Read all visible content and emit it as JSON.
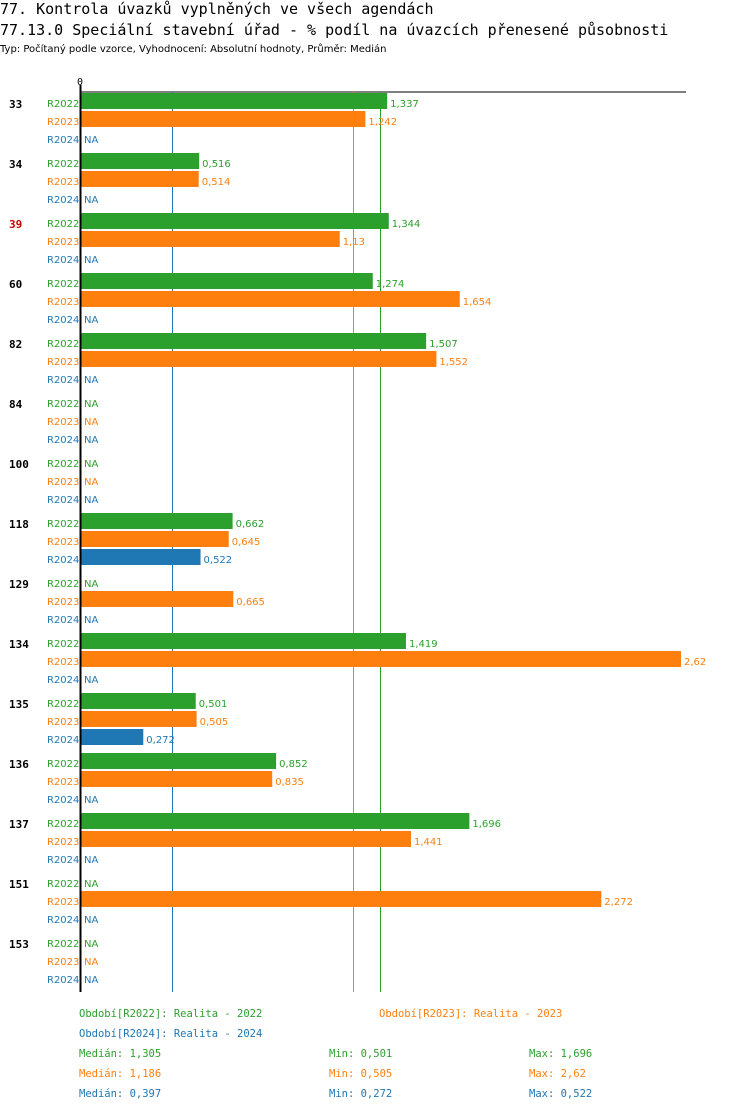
{
  "header": {
    "title1": "77. Kontrola úvazků vyplněných ve všech agendách",
    "title2": "77.13.0 Speciální stavební úřad - % podíl na úvazcích přenesené působnosti",
    "subtitle": "Typ: Počítaný podle vzorce, Vyhodnocení: Absolutní hodnoty, Průměr: Medián"
  },
  "colors": {
    "R2022": "#2ca02c",
    "R2023": "#ff7f0e",
    "R2024": "#1f77b4",
    "highlight": "#cc0000"
  },
  "chart_data": {
    "type": "bar",
    "orientation": "horizontal",
    "axis_zero_label": "0",
    "xlim": [
      0,
      2.62
    ],
    "series_names": [
      "R2022",
      "R2023",
      "R2024"
    ],
    "na_label": "NA",
    "groups": [
      {
        "label": "33",
        "highlight": false,
        "values": [
          1.337,
          1.242,
          null
        ],
        "labels": [
          "1,337",
          "1,242",
          "NA"
        ]
      },
      {
        "label": "34",
        "highlight": false,
        "values": [
          0.516,
          0.514,
          null
        ],
        "labels": [
          "0,516",
          "0,514",
          "NA"
        ]
      },
      {
        "label": "39",
        "highlight": true,
        "values": [
          1.344,
          1.13,
          null
        ],
        "labels": [
          "1,344",
          "1,13",
          "NA"
        ]
      },
      {
        "label": "60",
        "highlight": false,
        "values": [
          1.274,
          1.654,
          null
        ],
        "labels": [
          "1,274",
          "1,654",
          "NA"
        ]
      },
      {
        "label": "82",
        "highlight": false,
        "values": [
          1.507,
          1.552,
          null
        ],
        "labels": [
          "1,507",
          "1,552",
          "NA"
        ]
      },
      {
        "label": "84",
        "highlight": false,
        "values": [
          null,
          null,
          null
        ],
        "labels": [
          "NA",
          "NA",
          "NA"
        ]
      },
      {
        "label": "100",
        "highlight": false,
        "values": [
          null,
          null,
          null
        ],
        "labels": [
          "NA",
          "NA",
          "NA"
        ]
      },
      {
        "label": "118",
        "highlight": false,
        "values": [
          0.662,
          0.645,
          0.522
        ],
        "labels": [
          "0,662",
          "0,645",
          "0,522"
        ]
      },
      {
        "label": "129",
        "highlight": false,
        "values": [
          null,
          0.665,
          null
        ],
        "labels": [
          "NA",
          "0,665",
          "NA"
        ]
      },
      {
        "label": "134",
        "highlight": false,
        "values": [
          1.419,
          2.62,
          null
        ],
        "labels": [
          "1,419",
          "2,62",
          "NA"
        ]
      },
      {
        "label": "135",
        "highlight": false,
        "values": [
          0.501,
          0.505,
          0.272
        ],
        "labels": [
          "0,501",
          "0,505",
          "0,272"
        ]
      },
      {
        "label": "136",
        "highlight": false,
        "values": [
          0.852,
          0.835,
          null
        ],
        "labels": [
          "0,852",
          "0,835",
          "NA"
        ]
      },
      {
        "label": "137",
        "highlight": false,
        "values": [
          1.696,
          1.441,
          null
        ],
        "labels": [
          "1,696",
          "1,441",
          "NA"
        ]
      },
      {
        "label": "151",
        "highlight": false,
        "values": [
          null,
          2.272,
          null
        ],
        "labels": [
          "NA",
          "2,272",
          "NA"
        ]
      },
      {
        "label": "153",
        "highlight": false,
        "values": [
          null,
          null,
          null
        ],
        "labels": [
          "NA",
          "NA",
          "NA"
        ]
      }
    ],
    "median_lines": {
      "R2022": 1.305,
      "R2023": 1.186,
      "R2024": 0.397
    }
  },
  "legend": {
    "r2022": "Období[R2022]: Realita - 2022",
    "r2023": "Období[R2023]: Realita - 2023",
    "r2024": "Období[R2024]: Realita - 2024"
  },
  "stats": {
    "r2022": {
      "median": "Medián: 1,305",
      "min": "Min: 0,501",
      "max": "Max: 1,696"
    },
    "r2023": {
      "median": "Medián: 1,186",
      "min": "Min: 0,505",
      "max": "Max: 2,62"
    },
    "r2024": {
      "median": "Medián: 0,397",
      "min": "Min: 0,272",
      "max": "Max: 0,522"
    }
  }
}
